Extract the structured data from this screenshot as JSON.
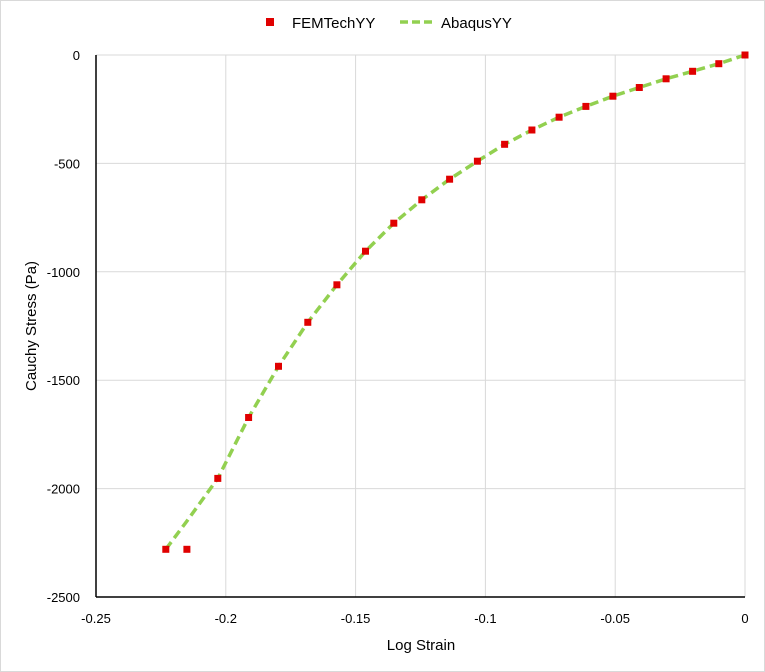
{
  "chart_data": {
    "type": "scatter",
    "title": "",
    "xlabel": "Log Strain",
    "ylabel": "Cauchy Stress (Pa)",
    "xlim": [
      -0.25,
      0
    ],
    "ylim": [
      -2500,
      0
    ],
    "x_ticks": [
      -0.25,
      -0.2,
      -0.15,
      -0.1,
      -0.05,
      0
    ],
    "x_tick_labels": [
      "-0.25",
      "-0.2",
      "-0.15",
      "-0.1",
      "-0.05",
      "0"
    ],
    "y_ticks": [
      -2500,
      -2000,
      -1500,
      -1000,
      -500,
      0
    ],
    "y_tick_labels": [
      "-2500",
      "-2000",
      "-1500",
      "-1000",
      "-500",
      "0"
    ],
    "grid": true,
    "legend_position": "top",
    "series": [
      {
        "name": "FEMTechYY",
        "style": "markers",
        "color": "#e00000",
        "x": [
          0,
          -0.0101,
          -0.0202,
          -0.0304,
          -0.0407,
          -0.0509,
          -0.0613,
          -0.0716,
          -0.0821,
          -0.0926,
          -0.1031,
          -0.1138,
          -0.1245,
          -0.1353,
          -0.1462,
          -0.1572,
          -0.1684,
          -0.1797,
          -0.1912,
          -0.2031,
          -0.215,
          -0.2231
        ],
        "y": [
          0,
          -40,
          -75,
          -110,
          -150,
          -190,
          -237,
          -287,
          -346,
          -412,
          -490,
          -573,
          -668,
          -776,
          -905,
          -1060,
          -1233,
          -1436,
          -1672,
          -1953,
          -2280,
          -2280
        ]
      },
      {
        "name": "AbaqusYY",
        "style": "dashed-line",
        "color": "#92d050",
        "x": [
          0,
          -0.0101,
          -0.0202,
          -0.0304,
          -0.0407,
          -0.0509,
          -0.0613,
          -0.0716,
          -0.0821,
          -0.0926,
          -0.1031,
          -0.1138,
          -0.1245,
          -0.1353,
          -0.1462,
          -0.1572,
          -0.1684,
          -0.1797,
          -0.1912,
          -0.2031,
          -0.215,
          -0.2231
        ],
        "y": [
          0,
          -40,
          -75,
          -110,
          -150,
          -190,
          -237,
          -287,
          -346,
          -412,
          -490,
          -573,
          -668,
          -776,
          -905,
          -1060,
          -1233,
          -1436,
          -1672,
          -1953,
          -2150,
          -2280
        ]
      }
    ]
  }
}
